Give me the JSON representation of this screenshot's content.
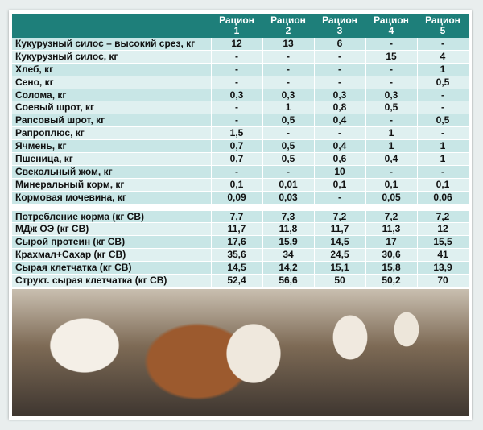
{
  "header": {
    "col_prefix": "Рацион",
    "rations": [
      "1",
      "2",
      "3",
      "4",
      "5"
    ]
  },
  "rows_top": [
    {
      "label": "Кукурузный силос – высокий срез, кг",
      "v": [
        "12",
        "13",
        "6",
        "-",
        "-"
      ]
    },
    {
      "label": "Кукурузный силос, кг",
      "v": [
        "-",
        "-",
        "-",
        "15",
        "4"
      ]
    },
    {
      "label": "Хлеб, кг",
      "v": [
        "-",
        "-",
        "-",
        "-",
        "1"
      ]
    },
    {
      "label": "Сено, кг",
      "v": [
        "-",
        "-",
        "-",
        "-",
        "0,5"
      ]
    },
    {
      "label": "Солома, кг",
      "v": [
        "0,3",
        "0,3",
        "0,3",
        "0,3",
        "-"
      ]
    },
    {
      "label": "Соевый шрот, кг",
      "v": [
        "-",
        "1",
        "0,8",
        "0,5",
        "-"
      ]
    },
    {
      "label": "Рапсовый шрот, кг",
      "v": [
        "-",
        "0,5",
        "0,4",
        "-",
        "0,5"
      ]
    },
    {
      "label": "Рапроплюс, кг",
      "v": [
        "1,5",
        "-",
        "-",
        "1",
        "-"
      ]
    },
    {
      "label": "Ячмень, кг",
      "v": [
        "0,7",
        "0,5",
        "0,4",
        "1",
        "1"
      ]
    },
    {
      "label": "Пшеница, кг",
      "v": [
        "0,7",
        "0,5",
        "0,6",
        "0,4",
        "1"
      ]
    },
    {
      "label": "Свекольный жом, кг",
      "v": [
        "-",
        "-",
        "10",
        "-",
        "-"
      ]
    },
    {
      "label": "Минеральный корм, кг",
      "v": [
        "0,1",
        "0,01",
        "0,1",
        "0,1",
        "0,1"
      ]
    },
    {
      "label": "Кормовая мочевина, кг",
      "v": [
        "0,09",
        "0,03",
        "-",
        "0,05",
        "0,06"
      ]
    }
  ],
  "rows_bottom": [
    {
      "label": "Потребление корма (кг СВ)",
      "v": [
        "7,7",
        "7,3",
        "7,2",
        "7,2",
        "7,2"
      ]
    },
    {
      "label": "МДж ОЭ (кг СВ)",
      "v": [
        "11,7",
        "11,8",
        "11,7",
        "11,3",
        "12"
      ]
    },
    {
      "label": "Сырой протеин (кг СВ)",
      "v": [
        "17,6",
        "15,9",
        "14,5",
        "17",
        "15,5"
      ]
    },
    {
      "label": "Крахмал+Сахар (кг СВ)",
      "v": [
        "35,6",
        "34",
        "24,5",
        "30,6",
        "41"
      ]
    },
    {
      "label": "Сырая клетчатка (кг СВ)",
      "v": [
        "14,5",
        "14,2",
        "15,1",
        "15,8",
        "13,9"
      ]
    },
    {
      "label": "Структ. сырая клетчатка (кг СВ)",
      "v": [
        "52,4",
        "56,6",
        "50",
        "50,2",
        "70"
      ]
    }
  ]
}
